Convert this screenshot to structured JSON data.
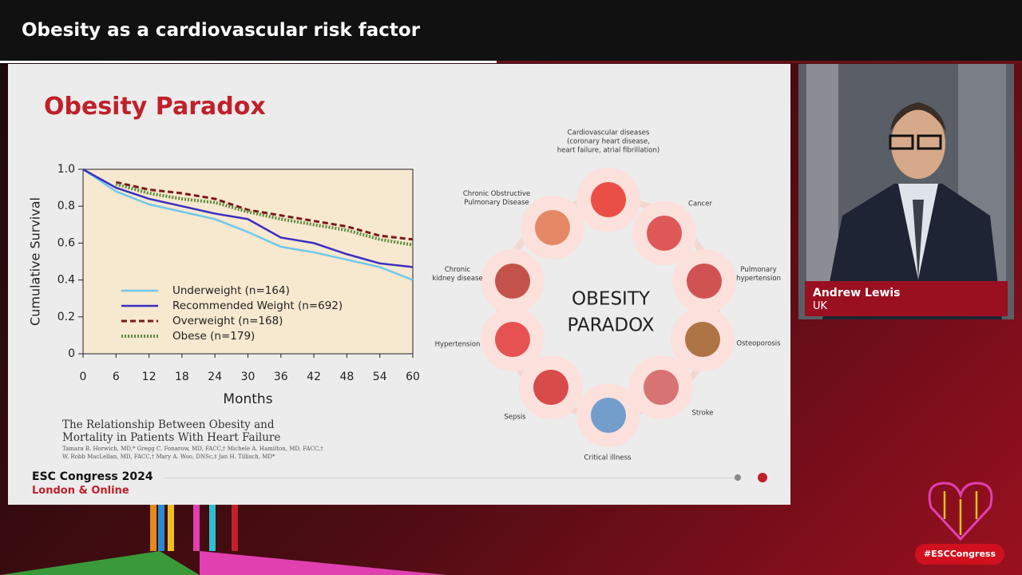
{
  "header": {
    "title": "Obesity as a cardiovascular risk factor"
  },
  "slide": {
    "title": "Obesity Paradox",
    "chart": {
      "type": "line",
      "ylabel": "Cumulative Survival",
      "xlabel": "Months",
      "x": [
        0,
        6,
        12,
        18,
        24,
        30,
        36,
        42,
        48,
        54,
        60
      ],
      "xlim": [
        0,
        60
      ],
      "xticks": [
        0,
        6,
        12,
        18,
        24,
        30,
        36,
        42,
        48,
        54,
        60
      ],
      "ylim": [
        0,
        1
      ],
      "yticks": [
        0,
        0.2,
        0.4,
        0.6,
        0.8,
        {
          "value": 1,
          "label": "1.0"
        }
      ],
      "series": [
        {
          "name": "Underweight (n=164)",
          "color": "#6fc8ea",
          "style": "solid",
          "values": [
            1.0,
            0.88,
            0.81,
            0.77,
            0.73,
            0.66,
            0.58,
            0.55,
            0.51,
            0.47,
            0.4
          ]
        },
        {
          "name": "Recommended Weight (n=692)",
          "color": "#3a2fc0",
          "style": "solid",
          "values": [
            1.0,
            0.9,
            0.84,
            0.8,
            0.76,
            0.73,
            0.63,
            0.6,
            0.54,
            0.49,
            0.47
          ]
        },
        {
          "name": "Overweight (n=168)",
          "color": "#7a1a1a",
          "style": "dashed",
          "values": [
            null,
            0.93,
            0.89,
            0.87,
            0.84,
            0.78,
            0.75,
            0.72,
            0.69,
            0.64,
            0.62
          ]
        },
        {
          "name": "Obese (n=179)",
          "color": "#5c8a3a",
          "style": "dotted",
          "values": [
            null,
            0.92,
            0.87,
            0.84,
            0.82,
            0.77,
            0.73,
            0.7,
            0.67,
            0.62,
            0.59
          ]
        }
      ]
    },
    "citation": {
      "title": [
        "The Relationship Between Obesity and",
        "Mortality in Patients With Heart Failure"
      ],
      "authors": [
        "Tamara B. Horwich, MD,* Gregg C. Fonarow, MD, FACC,† Michele A. Hamilton, MD, FACC,†",
        "W. Robb MacLellan, MD, FACC,† Mary A. Woo, DNSc,‡ Jan H. Tillisch, MD*"
      ]
    },
    "infographic": {
      "center": [
        "OBESITY",
        "PARADOX"
      ],
      "items": [
        {
          "lines": [
            "Cardiovascular diseases",
            "(coronary heart disease,",
            "heart failure, atrial fibrillation)"
          ]
        },
        {
          "lines": [
            "Cancer"
          ]
        },
        {
          "lines": [
            "Pulmonary",
            "hypertension"
          ]
        },
        {
          "lines": [
            "Osteoporosis"
          ]
        },
        {
          "lines": [
            "Stroke"
          ]
        },
        {
          "lines": [
            "Critical illness"
          ]
        },
        {
          "lines": [
            "Sepsis"
          ]
        },
        {
          "lines": [
            "Hypertension"
          ]
        },
        {
          "lines": [
            "Chronic",
            "kidney disease"
          ]
        },
        {
          "lines": [
            "Chronic Obstructive",
            "Pulmonary Disease"
          ]
        }
      ]
    },
    "footer": {
      "event": "ESC Congress 2024",
      "location": "London & Online"
    }
  },
  "speaker": {
    "name": "Andrew Lewis",
    "country": "UK"
  },
  "hashtag": "#ESCCongress"
}
